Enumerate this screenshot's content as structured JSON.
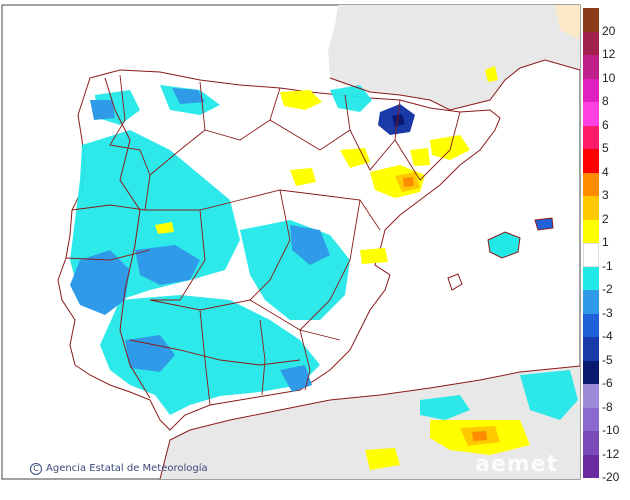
{
  "credit": {
    "copyright_symbol": "C",
    "text": "Agencia Estatal de Meteorología"
  },
  "watermark": "aemet",
  "legend": {
    "entries": [
      {
        "label": "20",
        "color": "#8b3a1a"
      },
      {
        "label": "12",
        "color": "#a0204e"
      },
      {
        "label": "10",
        "color": "#c0208a"
      },
      {
        "label": "8",
        "color": "#e020c0"
      },
      {
        "label": "6",
        "color": "#ff40e0"
      },
      {
        "label": "5",
        "color": "#ff1a6a"
      },
      {
        "label": "4",
        "color": "#ff0000"
      },
      {
        "label": "3",
        "color": "#ff8c00"
      },
      {
        "label": "2",
        "color": "#ffc800"
      },
      {
        "label": "1",
        "color": "#ffff00"
      },
      {
        "label": "-1",
        "color": "#ffffff"
      },
      {
        "label": "-2",
        "color": "#22e8e8"
      },
      {
        "label": "-3",
        "color": "#2f9be8"
      },
      {
        "label": "-4",
        "color": "#2060d8"
      },
      {
        "label": "-5",
        "color": "#1a3aa8"
      },
      {
        "label": "-6",
        "color": "#0a1a70"
      },
      {
        "label": "-8",
        "color": "#9a8ad8"
      },
      {
        "label": "-10",
        "color": "#8a6ad0"
      },
      {
        "label": "-12",
        "color": "#7a4ab8"
      },
      {
        "label": "-20",
        "color": "#6a2aa0"
      }
    ]
  },
  "colors": {
    "sea": "#ffffff",
    "foreign_land": "#e8e8e8",
    "border": "#8b1a1a",
    "frame": "#444444"
  }
}
